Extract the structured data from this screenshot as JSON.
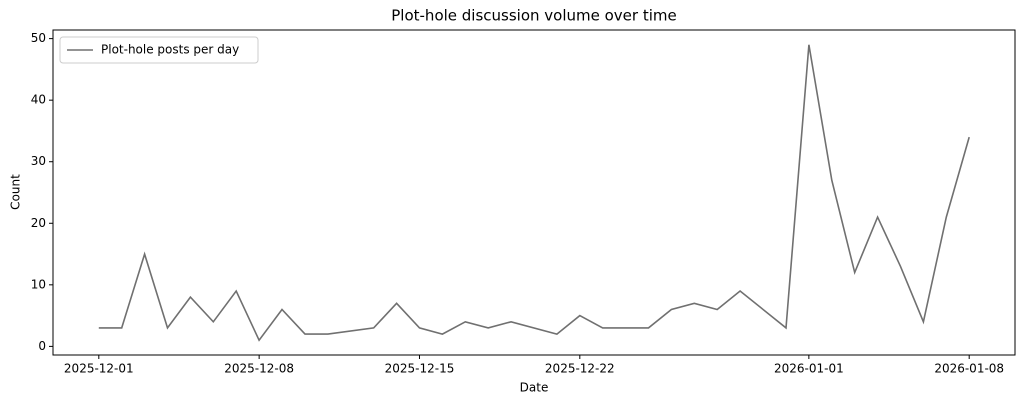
{
  "chart_data": {
    "type": "line",
    "title": "Plot-hole discussion volume over time",
    "x_label": "Date",
    "y_label": "Count",
    "x": [
      "2025-12-01",
      "2025-12-02",
      "2025-12-03",
      "2025-12-04",
      "2025-12-05",
      "2025-12-06",
      "2025-12-07",
      "2025-12-08",
      "2025-12-09",
      "2025-12-10",
      "2025-12-11",
      "2025-12-13",
      "2025-12-14",
      "2025-12-15",
      "2025-12-16",
      "2025-12-17",
      "2025-12-18",
      "2025-12-19",
      "2025-12-21",
      "2025-12-22",
      "2025-12-23",
      "2025-12-24",
      "2025-12-25",
      "2025-12-26",
      "2025-12-27",
      "2025-12-28",
      "2025-12-29",
      "2025-12-31",
      "2026-01-01",
      "2026-01-02",
      "2026-01-03",
      "2026-01-04",
      "2026-01-05",
      "2026-01-06",
      "2026-01-07",
      "2026-01-08"
    ],
    "series": [
      {
        "name": "Plot-hole posts per day",
        "color": "#707070",
        "values": [
          3,
          3,
          15,
          3,
          8,
          4,
          9,
          1,
          6,
          2,
          2,
          3,
          7,
          3,
          2,
          4,
          3,
          4,
          2,
          5,
          3,
          3,
          3,
          6,
          7,
          6,
          9,
          3,
          49,
          27,
          12,
          21,
          13,
          4,
          21,
          34
        ]
      }
    ],
    "xlim": [
      "2025-11-29",
      "2026-01-10"
    ],
    "xticks": [
      "2025-12-01",
      "2025-12-08",
      "2025-12-15",
      "2025-12-22",
      "2026-01-01",
      "2026-01-08"
    ],
    "ylim": [
      -1.4,
      51.4
    ],
    "yticks": [
      0,
      10,
      20,
      30,
      40,
      50
    ],
    "legend": "upper left"
  }
}
